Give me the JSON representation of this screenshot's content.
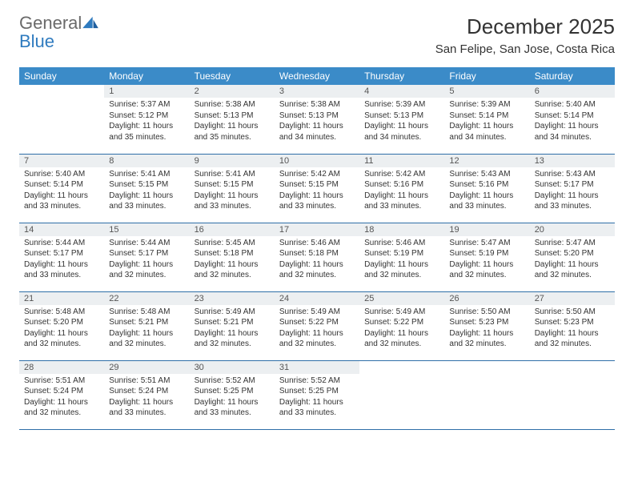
{
  "logo": {
    "word1": "General",
    "word2": "Blue"
  },
  "title": "December 2025",
  "location": "San Felipe, San Jose, Costa Rica",
  "colors": {
    "header_bg": "#3b8bc8",
    "header_text": "#ffffff",
    "daynum_bg": "#eceff1",
    "row_border": "#2f6fa8",
    "logo_gray": "#6a6a6a",
    "logo_blue": "#2f7bbf"
  },
  "weekdays": [
    "Sunday",
    "Monday",
    "Tuesday",
    "Wednesday",
    "Thursday",
    "Friday",
    "Saturday"
  ],
  "weeks": [
    [
      null,
      {
        "n": "1",
        "sr": "Sunrise: 5:37 AM",
        "ss": "Sunset: 5:12 PM",
        "dl": "Daylight: 11 hours and 35 minutes."
      },
      {
        "n": "2",
        "sr": "Sunrise: 5:38 AM",
        "ss": "Sunset: 5:13 PM",
        "dl": "Daylight: 11 hours and 35 minutes."
      },
      {
        "n": "3",
        "sr": "Sunrise: 5:38 AM",
        "ss": "Sunset: 5:13 PM",
        "dl": "Daylight: 11 hours and 34 minutes."
      },
      {
        "n": "4",
        "sr": "Sunrise: 5:39 AM",
        "ss": "Sunset: 5:13 PM",
        "dl": "Daylight: 11 hours and 34 minutes."
      },
      {
        "n": "5",
        "sr": "Sunrise: 5:39 AM",
        "ss": "Sunset: 5:14 PM",
        "dl": "Daylight: 11 hours and 34 minutes."
      },
      {
        "n": "6",
        "sr": "Sunrise: 5:40 AM",
        "ss": "Sunset: 5:14 PM",
        "dl": "Daylight: 11 hours and 34 minutes."
      }
    ],
    [
      {
        "n": "7",
        "sr": "Sunrise: 5:40 AM",
        "ss": "Sunset: 5:14 PM",
        "dl": "Daylight: 11 hours and 33 minutes."
      },
      {
        "n": "8",
        "sr": "Sunrise: 5:41 AM",
        "ss": "Sunset: 5:15 PM",
        "dl": "Daylight: 11 hours and 33 minutes."
      },
      {
        "n": "9",
        "sr": "Sunrise: 5:41 AM",
        "ss": "Sunset: 5:15 PM",
        "dl": "Daylight: 11 hours and 33 minutes."
      },
      {
        "n": "10",
        "sr": "Sunrise: 5:42 AM",
        "ss": "Sunset: 5:15 PM",
        "dl": "Daylight: 11 hours and 33 minutes."
      },
      {
        "n": "11",
        "sr": "Sunrise: 5:42 AM",
        "ss": "Sunset: 5:16 PM",
        "dl": "Daylight: 11 hours and 33 minutes."
      },
      {
        "n": "12",
        "sr": "Sunrise: 5:43 AM",
        "ss": "Sunset: 5:16 PM",
        "dl": "Daylight: 11 hours and 33 minutes."
      },
      {
        "n": "13",
        "sr": "Sunrise: 5:43 AM",
        "ss": "Sunset: 5:17 PM",
        "dl": "Daylight: 11 hours and 33 minutes."
      }
    ],
    [
      {
        "n": "14",
        "sr": "Sunrise: 5:44 AM",
        "ss": "Sunset: 5:17 PM",
        "dl": "Daylight: 11 hours and 33 minutes."
      },
      {
        "n": "15",
        "sr": "Sunrise: 5:44 AM",
        "ss": "Sunset: 5:17 PM",
        "dl": "Daylight: 11 hours and 32 minutes."
      },
      {
        "n": "16",
        "sr": "Sunrise: 5:45 AM",
        "ss": "Sunset: 5:18 PM",
        "dl": "Daylight: 11 hours and 32 minutes."
      },
      {
        "n": "17",
        "sr": "Sunrise: 5:46 AM",
        "ss": "Sunset: 5:18 PM",
        "dl": "Daylight: 11 hours and 32 minutes."
      },
      {
        "n": "18",
        "sr": "Sunrise: 5:46 AM",
        "ss": "Sunset: 5:19 PM",
        "dl": "Daylight: 11 hours and 32 minutes."
      },
      {
        "n": "19",
        "sr": "Sunrise: 5:47 AM",
        "ss": "Sunset: 5:19 PM",
        "dl": "Daylight: 11 hours and 32 minutes."
      },
      {
        "n": "20",
        "sr": "Sunrise: 5:47 AM",
        "ss": "Sunset: 5:20 PM",
        "dl": "Daylight: 11 hours and 32 minutes."
      }
    ],
    [
      {
        "n": "21",
        "sr": "Sunrise: 5:48 AM",
        "ss": "Sunset: 5:20 PM",
        "dl": "Daylight: 11 hours and 32 minutes."
      },
      {
        "n": "22",
        "sr": "Sunrise: 5:48 AM",
        "ss": "Sunset: 5:21 PM",
        "dl": "Daylight: 11 hours and 32 minutes."
      },
      {
        "n": "23",
        "sr": "Sunrise: 5:49 AM",
        "ss": "Sunset: 5:21 PM",
        "dl": "Daylight: 11 hours and 32 minutes."
      },
      {
        "n": "24",
        "sr": "Sunrise: 5:49 AM",
        "ss": "Sunset: 5:22 PM",
        "dl": "Daylight: 11 hours and 32 minutes."
      },
      {
        "n": "25",
        "sr": "Sunrise: 5:49 AM",
        "ss": "Sunset: 5:22 PM",
        "dl": "Daylight: 11 hours and 32 minutes."
      },
      {
        "n": "26",
        "sr": "Sunrise: 5:50 AM",
        "ss": "Sunset: 5:23 PM",
        "dl": "Daylight: 11 hours and 32 minutes."
      },
      {
        "n": "27",
        "sr": "Sunrise: 5:50 AM",
        "ss": "Sunset: 5:23 PM",
        "dl": "Daylight: 11 hours and 32 minutes."
      }
    ],
    [
      {
        "n": "28",
        "sr": "Sunrise: 5:51 AM",
        "ss": "Sunset: 5:24 PM",
        "dl": "Daylight: 11 hours and 32 minutes."
      },
      {
        "n": "29",
        "sr": "Sunrise: 5:51 AM",
        "ss": "Sunset: 5:24 PM",
        "dl": "Daylight: 11 hours and 33 minutes."
      },
      {
        "n": "30",
        "sr": "Sunrise: 5:52 AM",
        "ss": "Sunset: 5:25 PM",
        "dl": "Daylight: 11 hours and 33 minutes."
      },
      {
        "n": "31",
        "sr": "Sunrise: 5:52 AM",
        "ss": "Sunset: 5:25 PM",
        "dl": "Daylight: 11 hours and 33 minutes."
      },
      null,
      null,
      null
    ]
  ]
}
